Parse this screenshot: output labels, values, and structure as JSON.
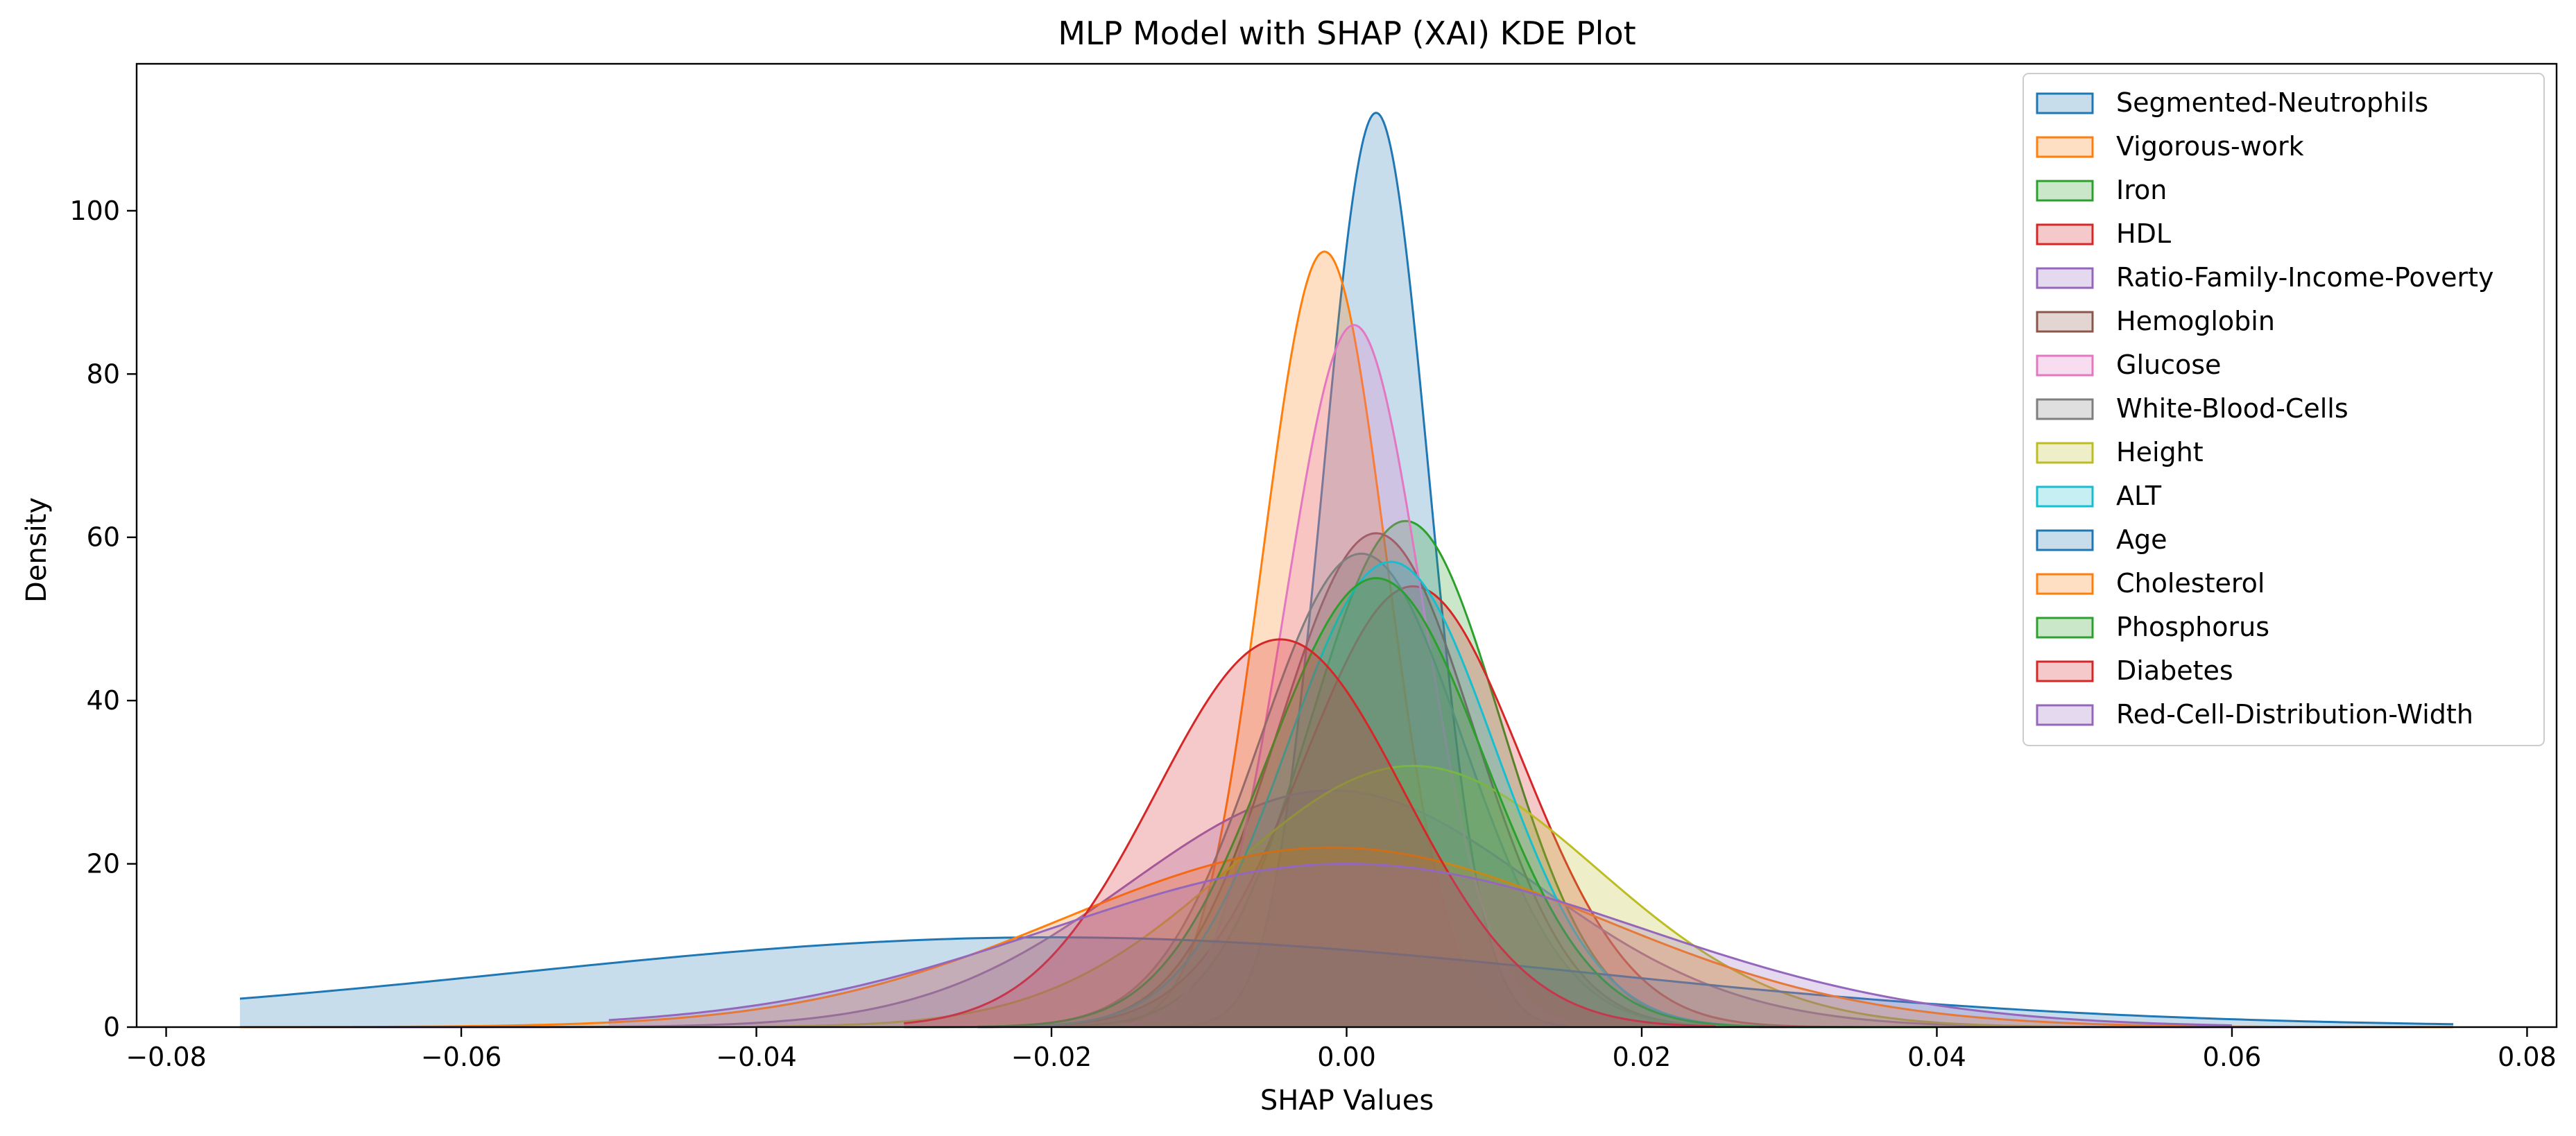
{
  "chart_data": {
    "type": "area",
    "title": "MLP Model with SHAP (XAI) KDE Plot",
    "xlabel": "SHAP Values",
    "ylabel": "Density",
    "xlim": [
      -0.082,
      0.082
    ],
    "ylim": [
      0,
      118
    ],
    "grid": false,
    "legend_position": "top-right",
    "x_ticks": [
      {
        "value": -0.08,
        "label": "−0.08"
      },
      {
        "value": -0.06,
        "label": "−0.06"
      },
      {
        "value": -0.04,
        "label": "−0.04"
      },
      {
        "value": -0.02,
        "label": "−0.02"
      },
      {
        "value": 0.0,
        "label": "0.00"
      },
      {
        "value": 0.02,
        "label": "0.02"
      },
      {
        "value": 0.04,
        "label": "0.04"
      },
      {
        "value": 0.06,
        "label": "0.06"
      },
      {
        "value": 0.08,
        "label": "0.08"
      }
    ],
    "y_ticks": [
      {
        "value": 0,
        "label": "0"
      },
      {
        "value": 20,
        "label": "20"
      },
      {
        "value": 40,
        "label": "40"
      },
      {
        "value": 60,
        "label": "60"
      },
      {
        "value": 80,
        "label": "80"
      },
      {
        "value": 100,
        "label": "100"
      }
    ],
    "series": [
      {
        "name": "Segmented-Neutrophils",
        "color": "#1f77b4",
        "peak_x": 0.002,
        "peak_density": 112,
        "x_range": [
          -0.012,
          0.015
        ]
      },
      {
        "name": "Vigorous-work",
        "color": "#ff7f0e",
        "peak_x": -0.0015,
        "peak_density": 95,
        "x_range": [
          -0.015,
          0.012
        ]
      },
      {
        "name": "Iron",
        "color": "#2ca02c",
        "peak_x": 0.004,
        "peak_density": 62,
        "x_range": [
          -0.02,
          0.03
        ]
      },
      {
        "name": "HDL",
        "color": "#d62728",
        "peak_x": 0.0045,
        "peak_density": 54,
        "x_range": [
          -0.025,
          0.035
        ]
      },
      {
        "name": "Ratio-Family-Income-Poverty",
        "color": "#9467bd",
        "peak_x": -0.001,
        "peak_density": 29,
        "x_range": [
          -0.075,
          0.075
        ]
      },
      {
        "name": "Hemoglobin",
        "color": "#8c564b",
        "peak_x": 0.002,
        "peak_density": 60.5,
        "x_range": [
          -0.025,
          0.03
        ]
      },
      {
        "name": "Glucose",
        "color": "#e377c2",
        "peak_x": 0.0005,
        "peak_density": 86,
        "x_range": [
          -0.015,
          0.015
        ]
      },
      {
        "name": "White-Blood-Cells",
        "color": "#7f7f7f",
        "peak_x": 0.001,
        "peak_density": 58,
        "x_range": [
          -0.03,
          0.035
        ]
      },
      {
        "name": "Height",
        "color": "#bcbd22",
        "peak_x": 0.0045,
        "peak_density": 32,
        "x_range": [
          -0.04,
          0.05
        ]
      },
      {
        "name": "ALT",
        "color": "#17becf",
        "peak_x": 0.003,
        "peak_density": 57,
        "x_range": [
          -0.025,
          0.035
        ]
      },
      {
        "name": "Age",
        "color": "#1f77b4",
        "peak_x": -0.02,
        "peak_density": 11,
        "x_range": [
          -0.075,
          0.075
        ]
      },
      {
        "name": "Cholesterol",
        "color": "#ff7f0e",
        "peak_x": -0.001,
        "peak_density": 22,
        "x_range": [
          -0.075,
          0.075
        ]
      },
      {
        "name": "Phosphorus",
        "color": "#2ca02c",
        "peak_x": 0.002,
        "peak_density": 55,
        "x_range": [
          -0.025,
          0.04
        ]
      },
      {
        "name": "Diabetes",
        "color": "#d62728",
        "peak_x": -0.0045,
        "peak_density": 47.5,
        "x_range": [
          -0.03,
          0.025
        ]
      },
      {
        "name": "Red-Cell-Distribution-Width",
        "color": "#9467bd",
        "peak_x": 0.0,
        "peak_density": 20,
        "x_range": [
          -0.05,
          0.06
        ]
      }
    ]
  }
}
